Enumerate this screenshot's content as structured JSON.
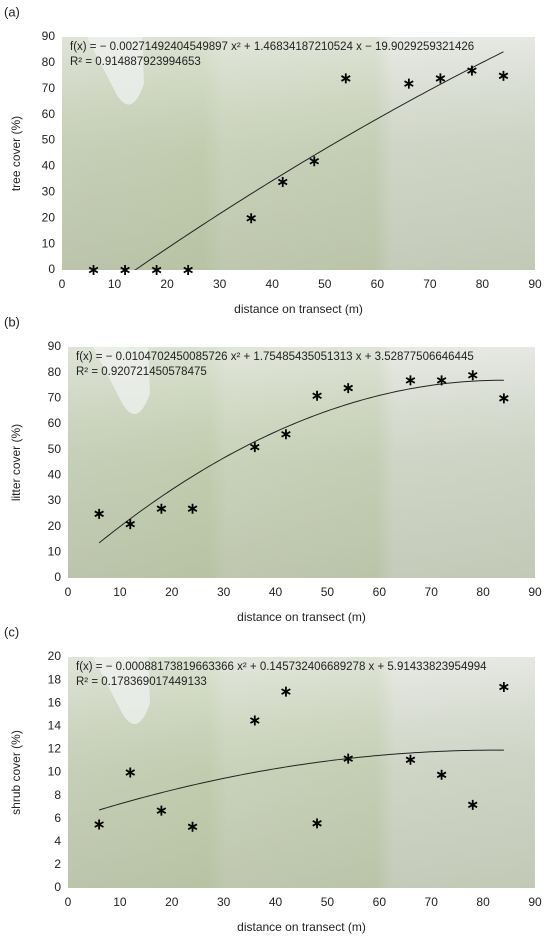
{
  "chart_data": [
    {
      "type": "scatter",
      "panel_label": "(a)",
      "equation": "f(x) = − 0.00271492404549897 x² + 1.46834187210524 x − 19.9029259321426",
      "r_squared_label": "R² = 0.914887923994653",
      "trend_coefficients": [
        -0.00271492404549897,
        1.46834187210524,
        -19.9029259321426
      ],
      "x": [
        6,
        12,
        18,
        24,
        36,
        42,
        48,
        54,
        66,
        72,
        78,
        84
      ],
      "values": [
        0,
        0,
        0,
        0,
        20,
        34,
        42,
        74,
        72,
        74,
        77,
        75
      ],
      "xlabel": "distance on transect (m)",
      "ylabel": "tree cover (%)",
      "xlim": [
        0,
        90
      ],
      "xticks": [
        0,
        10,
        20,
        30,
        40,
        50,
        60,
        70,
        80,
        90
      ],
      "ylim": [
        0,
        90
      ],
      "yticks": [
        0,
        10,
        20,
        30,
        40,
        50,
        60,
        70,
        80,
        90
      ]
    },
    {
      "type": "scatter",
      "panel_label": "(b)",
      "equation": "f(x) = − 0.0104702450085726 x² + 1.75485435051313 x + 3.52877506646445",
      "r_squared_label": "R² = 0.920721450578475",
      "trend_coefficients": [
        -0.0104702450085726,
        1.75485435051313,
        3.52877506646445
      ],
      "x": [
        6,
        12,
        18,
        24,
        36,
        42,
        48,
        54,
        66,
        72,
        78,
        84
      ],
      "values": [
        25,
        21,
        27,
        27,
        51,
        56,
        71,
        74,
        77,
        77,
        79,
        70
      ],
      "xlabel": "distance on transect (m)",
      "ylabel": "litter cover (%)",
      "xlim": [
        0,
        90
      ],
      "xticks": [
        0,
        10,
        20,
        30,
        40,
        50,
        60,
        70,
        80,
        90
      ],
      "ylim": [
        0,
        90
      ],
      "yticks": [
        0,
        10,
        20,
        30,
        40,
        50,
        60,
        70,
        80,
        90
      ]
    },
    {
      "type": "scatter",
      "panel_label": "(c)",
      "equation": "f(x) = − 0.00088173819663366 x² + 0.145732406689278 x + 5.91433823954994",
      "r_squared_label": "R² = 0.178369017449133",
      "trend_coefficients": [
        -0.00088173819663366,
        0.145732406689278,
        5.91433823954994
      ],
      "x": [
        6,
        12,
        18,
        24,
        36,
        42,
        48,
        54,
        66,
        72,
        78,
        84
      ],
      "values": [
        5.5,
        10,
        6.7,
        5.3,
        14.5,
        17,
        5.6,
        11.2,
        11.1,
        9.8,
        7.2,
        17.4
      ],
      "xlabel": "distance on transect (m)",
      "ylabel": "shrub cover (%)",
      "xlim": [
        0,
        90
      ],
      "xticks": [
        0,
        10,
        20,
        30,
        40,
        50,
        60,
        70,
        80,
        90
      ],
      "ylim": [
        0,
        20
      ],
      "yticks": [
        0,
        2,
        4,
        6,
        8,
        10,
        12,
        14,
        16,
        18,
        20
      ]
    }
  ]
}
